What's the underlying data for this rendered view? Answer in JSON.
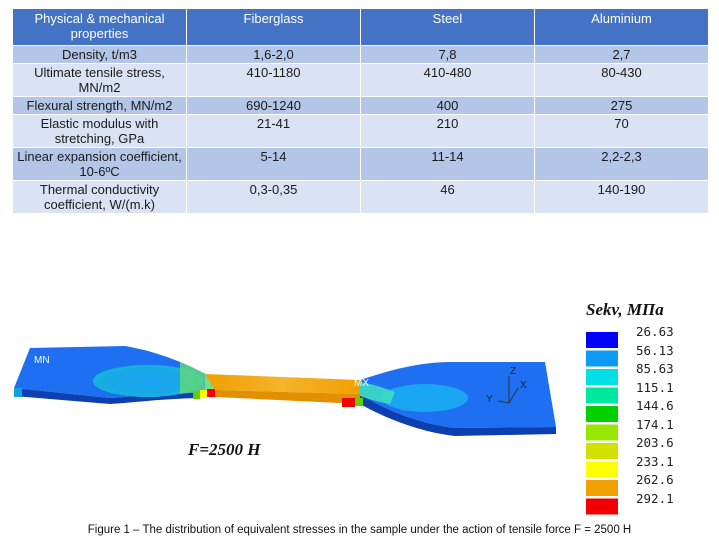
{
  "table": {
    "headers": [
      "Physical & mechanical properties",
      "Fiberglass",
      "Steel",
      "Aluminium"
    ],
    "rows": [
      [
        "Density, t/m3",
        "1,6-2,0",
        "7,8",
        "2,7"
      ],
      [
        "Ultimate tensile stress, MN/m2",
        "410-1180",
        "410-480",
        "80-430"
      ],
      [
        "Flexural strength, MN/m2",
        "690-1240",
        "400",
        "275"
      ],
      [
        "Elastic modulus with stretching, GPa",
        "21-41",
        "210",
        "70"
      ],
      [
        "Linear expansion coefficient, 10-6ºC",
        "5-14",
        "11-14",
        "2,2-2,3"
      ],
      [
        "Thermal conductivity coefficient, W/(m.k)",
        "0,3-0,35",
        "46",
        "140-190"
      ]
    ]
  },
  "figure": {
    "legend_title": "Sekv, МПа",
    "legend_values": [
      "26.63",
      "56.13",
      "85.63",
      "115.1",
      "144.6",
      "174.1",
      "203.6",
      "233.1",
      "262.6",
      "292.1"
    ],
    "legend_colors": [
      "#0000ff",
      "#0b9bf5",
      "#00e0e6",
      "#00e8a0",
      "#00d000",
      "#99e600",
      "#d4e000",
      "#ffff00",
      "#f0a000",
      "#f00000"
    ],
    "force_label": "F=2500 H",
    "mn_label": "MN",
    "mx_label": "MX",
    "axes": {
      "z": "Z",
      "y": "Y",
      "x": "X"
    },
    "caption": "Figure 1 – The distribution of equivalent stresses in the sample under the action of tensile force F = 2500 H"
  }
}
